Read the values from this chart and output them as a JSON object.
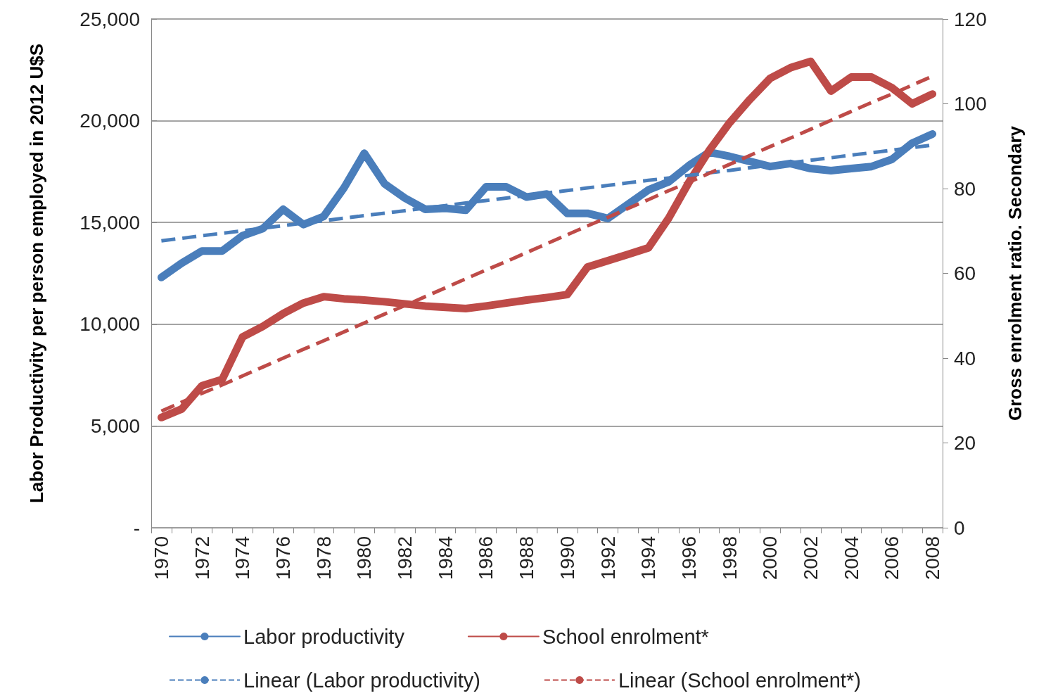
{
  "chart_data": {
    "type": "line",
    "ylabel": "Labor Productivity per person employed in 2012 U$S",
    "y2label": "Gross enrolment ratio. Secondary",
    "categories": [
      "1970",
      null,
      "1972",
      null,
      "1974",
      null,
      "1976",
      null,
      "1978",
      null,
      "1980",
      null,
      "1982",
      null,
      "1984",
      null,
      "1986",
      null,
      "1988",
      null,
      "1990",
      null,
      "1992",
      null,
      "1994",
      null,
      "1996",
      null,
      "1998",
      null,
      "2000",
      null,
      "2002",
      null,
      "2004",
      null,
      "2006",
      null,
      "2008"
    ],
    "series": [
      {
        "name": "Labor productivity",
        "color": "#4a7ebb",
        "values": [
          12300,
          13000,
          13600,
          13600,
          14350,
          14700,
          15650,
          14900,
          15300,
          16700,
          18400,
          16900,
          16200,
          15650,
          15700,
          15600,
          16750,
          16750,
          16250,
          16400,
          15450,
          15450,
          15200,
          15900,
          16600,
          17000,
          17800,
          18450,
          18250,
          18000,
          17750,
          17900,
          17650,
          17550,
          17650,
          17750,
          18100,
          18900,
          19350
        ]
      },
      {
        "name": "School enrolment*",
        "color": "#be4b48",
        "axis": "y2",
        "values": [
          26,
          28,
          33.5,
          35,
          45,
          47.5,
          50.5,
          53,
          54.5,
          54,
          53.7,
          53.3,
          52.8,
          52.3,
          52,
          51.7,
          52.3,
          53,
          53.7,
          54.3,
          55,
          61.5,
          63,
          64.5,
          66,
          73,
          81.5,
          89,
          95.5,
          101,
          106,
          108.5,
          110,
          103,
          106.3,
          106.3,
          103.8,
          100,
          102.3
        ]
      },
      {
        "name": "Linear (Labor productivity)",
        "color": "#4a7ebb",
        "line_style": "dashed",
        "values": [
          14100,
          14220,
          14350,
          14470,
          14590,
          14720,
          14840,
          14970,
          15090,
          15210,
          15340,
          15460,
          15580,
          15710,
          15830,
          15960,
          16080,
          16200,
          16330,
          16450,
          16570,
          16700,
          16820,
          16950,
          17070,
          17190,
          17320,
          17440,
          17560,
          17690,
          17810,
          17930,
          18060,
          18180,
          18310,
          18430,
          18550,
          18680,
          18800
        ]
      },
      {
        "name": "Linear (School enrolment*)",
        "color": "#be4b48",
        "line_style": "dashed",
        "axis": "y2",
        "values": [
          27.5,
          29.6,
          31.7,
          33.7,
          35.8,
          37.9,
          40,
          42.1,
          44.1,
          46.2,
          48.3,
          50.4,
          52.4,
          54.5,
          56.6,
          58.7,
          60.8,
          62.8,
          64.9,
          67,
          69.1,
          71.2,
          73.2,
          75.3,
          77.4,
          79.5,
          81.5,
          83.6,
          85.7,
          87.8,
          89.9,
          91.9,
          94,
          96.1,
          98.2,
          100.3,
          102.3,
          104.4,
          106.5
        ]
      }
    ],
    "ylim": [
      0,
      25000
    ],
    "yticks": [
      {
        "value": 0,
        "label": "-"
      },
      {
        "value": 5000,
        "label": "5,000"
      },
      {
        "value": 10000,
        "label": "10,000"
      },
      {
        "value": 15000,
        "label": "15,000"
      },
      {
        "value": 20000,
        "label": "20,000"
      },
      {
        "value": 25000,
        "label": "25,000"
      }
    ],
    "y2lim": [
      0,
      120
    ],
    "y2ticks": [
      0,
      20,
      40,
      60,
      80,
      100,
      120
    ],
    "grid": "y",
    "legend": "bottom",
    "marker": "none",
    "line_style": "solid"
  }
}
